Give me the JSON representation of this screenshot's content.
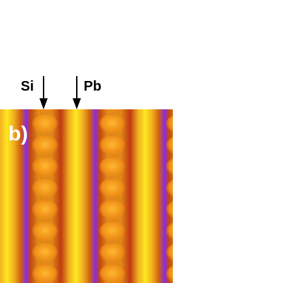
{
  "panel_label": "b)",
  "labels": [
    "Si",
    "Pb"
  ]
}
